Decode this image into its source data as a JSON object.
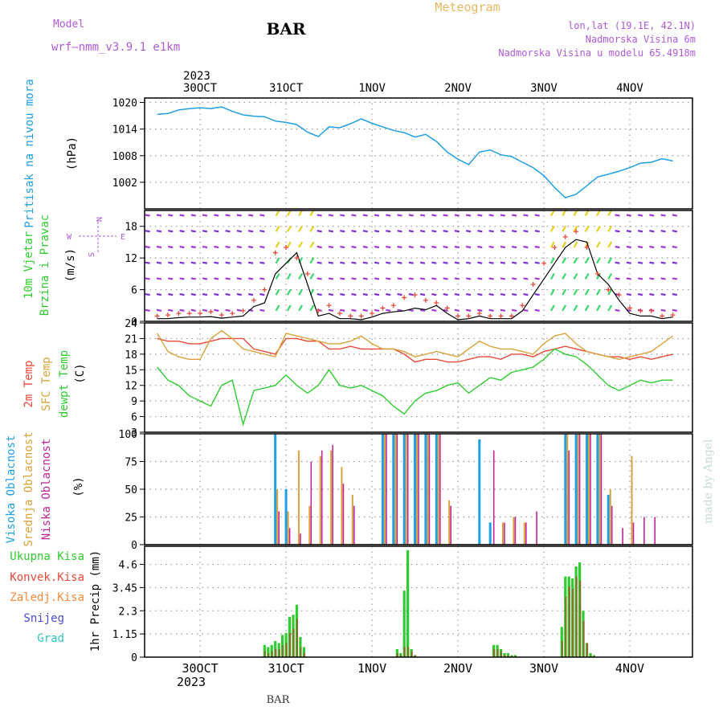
{
  "header": {
    "meteogram_title": "Meteogram",
    "model_label": "Model",
    "model_name": "wrf—nmm_v3.9.1 e1km",
    "station": "BAR",
    "location": "lon,lat (19.1E, 42.1N)",
    "altitude": "Nadmorska Visina 6m",
    "model_altitude": "Nadmorska Visina u modelu 65.4918m",
    "watermark": "made by Angel",
    "footer_station": "BAR"
  },
  "colors": {
    "pressure": "#1e9fe6",
    "temp2m": "#e84a3a",
    "sfc_temp": "#d9a23a",
    "dewpoint": "#2ecc2e",
    "cloud_high": "#1e9fe6",
    "cloud_mid": "#d9a23a",
    "cloud_low": "#c0259a",
    "precip_total": "#2ecc2e",
    "precip_conv": "#e84a3a",
    "gust_marker": "#e84a3a",
    "title_purple": "#b05ad8",
    "meteogram_orange": "#e6b860"
  },
  "time_axis": {
    "year": "2023",
    "days": [
      "30OCT",
      "31OCT",
      "1NOV",
      "2NOV",
      "3NOV",
      "4NOV"
    ],
    "start_hour": 0,
    "end_hour": 144
  },
  "chart_data": [
    {
      "type": "line",
      "panel": "pressure",
      "ylabel": [
        "Pritisak na nivou mora",
        "(hPa)"
      ],
      "yticks": [
        1002,
        1008,
        1014,
        1020
      ],
      "ylim": [
        996,
        1021
      ],
      "grid": true,
      "x": [
        -12,
        -9,
        -6,
        -3,
        0,
        3,
        6,
        9,
        12,
        15,
        18,
        21,
        24,
        27,
        30,
        33,
        36,
        39,
        42,
        45,
        48,
        51,
        54,
        57,
        60,
        63,
        66,
        69,
        72,
        75,
        78,
        81,
        84,
        87,
        90,
        93,
        96,
        99,
        102,
        105,
        108,
        111,
        114,
        117,
        120,
        123,
        126,
        129,
        132
      ],
      "series": [
        {
          "values": [
            1017.3,
            1017.5,
            1018.3,
            1018.6,
            1018.8,
            1018.6,
            1019.0,
            1018.0,
            1017.2,
            1016.9,
            1016.8,
            1015.8,
            1015.5,
            1015.0,
            1013.3,
            1012.3,
            1014.5,
            1014.3,
            1015.2,
            1016.3,
            1015.3,
            1014.5,
            1013.7,
            1013.2,
            1012.2,
            1012.8,
            1011.2,
            1008.8,
            1007.2,
            1006.0,
            1008.8,
            1009.3,
            1008.2,
            1007.8,
            1006.5,
            1005.3,
            1003.5,
            1000.8,
            998.5,
            999.3,
            1001.2,
            1003.2,
            1003.8,
            1004.5,
            1005.3,
            1006.3,
            1006.5,
            1007.3,
            1006.8
          ]
        }
      ]
    },
    {
      "type": "line",
      "panel": "wind",
      "ylabel": [
        "10m Vjetar",
        "Brzina i Pravac",
        "(m/s)"
      ],
      "compass": [
        "N",
        "W",
        "E",
        "S"
      ],
      "yticks": [
        0,
        6,
        12,
        18
      ],
      "ylim": [
        0,
        21
      ],
      "grid": true,
      "x": [
        -12,
        -9,
        -6,
        -3,
        0,
        3,
        6,
        9,
        12,
        15,
        18,
        21,
        24,
        27,
        30,
        33,
        36,
        39,
        42,
        45,
        48,
        51,
        54,
        57,
        60,
        63,
        66,
        69,
        72,
        75,
        78,
        81,
        84,
        87,
        90,
        93,
        96,
        99,
        102,
        105,
        108,
        111,
        114,
        117,
        120,
        123,
        126,
        129,
        132
      ],
      "series": [
        {
          "name": "speed",
          "values": [
            0.5,
            0.5,
            0.7,
            0.8,
            0.8,
            0.9,
            0.6,
            0.8,
            1.0,
            2.8,
            3.5,
            9.0,
            11.0,
            13.0,
            7.0,
            1.0,
            1.5,
            0.5,
            0.5,
            0.3,
            0.8,
            1.5,
            1.8,
            2.0,
            2.5,
            2.2,
            3.0,
            1.5,
            0.3,
            0.5,
            1.0,
            0.5,
            0.5,
            0.5,
            2.0,
            5.0,
            8.0,
            11.0,
            14.0,
            15.5,
            15.0,
            9.0,
            7.0,
            4.0,
            1.5,
            1.0,
            1.0,
            0.5,
            0.8
          ]
        },
        {
          "name": "gust",
          "values": [
            1.0,
            1.2,
            1.5,
            1.5,
            1.5,
            1.8,
            1.2,
            1.5,
            2.0,
            4.0,
            6.0,
            13.0,
            14.0,
            12.0,
            9.0,
            2.0,
            3.0,
            1.5,
            1.0,
            1.0,
            1.5,
            2.5,
            3.0,
            4.5,
            5.0,
            4.0,
            3.5,
            2.5,
            1.0,
            1.0,
            1.5,
            1.0,
            1.0,
            1.0,
            3.0,
            7.0,
            11.0,
            14.0,
            16.0,
            17.0,
            14.0,
            9.0,
            6.0,
            5.0,
            2.5,
            2.0,
            2.0,
            1.0,
            1.2
          ]
        }
      ]
    },
    {
      "type": "line",
      "panel": "temperature",
      "ylabel": [
        "2m Temp",
        "SFC Temp",
        "dewpt Temp",
        "(C)"
      ],
      "yticks": [
        3,
        6,
        9,
        12,
        15,
        18,
        21,
        24
      ],
      "ylim": [
        3,
        24
      ],
      "grid": true,
      "x": [
        -12,
        -9,
        -6,
        -3,
        0,
        3,
        6,
        9,
        12,
        15,
        18,
        21,
        24,
        27,
        30,
        33,
        36,
        39,
        42,
        45,
        48,
        51,
        54,
        57,
        60,
        63,
        66,
        69,
        72,
        75,
        78,
        81,
        84,
        87,
        90,
        93,
        96,
        99,
        102,
        105,
        108,
        111,
        114,
        117,
        120,
        123,
        126,
        129,
        132
      ],
      "series": [
        {
          "name": "2m Temp",
          "values": [
            21.0,
            20.5,
            20.5,
            20.0,
            20.0,
            20.5,
            21.0,
            21.0,
            21.0,
            19.0,
            18.5,
            18.0,
            21.0,
            21.0,
            20.5,
            20.5,
            19.0,
            19.0,
            19.5,
            19.0,
            19.0,
            19.0,
            19.0,
            18.0,
            16.5,
            17.0,
            17.0,
            16.5,
            16.5,
            17.0,
            17.5,
            17.5,
            17.0,
            18.0,
            18.0,
            17.5,
            18.5,
            19.0,
            19.5,
            19.0,
            18.5,
            18.0,
            17.5,
            17.5,
            17.0,
            17.5,
            17.0,
            17.5,
            18.0
          ]
        },
        {
          "name": "SFC Temp",
          "values": [
            22.0,
            18.5,
            17.5,
            17.0,
            17.0,
            21.0,
            22.5,
            21.0,
            19.0,
            18.5,
            18.0,
            17.5,
            22.0,
            21.5,
            21.0,
            20.5,
            20.0,
            20.0,
            20.5,
            21.5,
            20.0,
            19.0,
            19.0,
            18.5,
            17.5,
            18.0,
            18.5,
            18.0,
            17.5,
            19.0,
            20.5,
            19.5,
            19.0,
            19.0,
            18.5,
            18.0,
            20.0,
            21.5,
            22.0,
            20.0,
            18.5,
            18.0,
            17.5,
            17.0,
            17.5,
            18.0,
            18.5,
            20.0,
            21.5
          ]
        },
        {
          "name": "dewpt Temp",
          "values": [
            15.5,
            13.0,
            12.0,
            10.0,
            9.0,
            8.0,
            12.0,
            13.0,
            4.5,
            11.0,
            11.5,
            12.0,
            14.0,
            12.0,
            10.5,
            12.0,
            15.0,
            12.0,
            11.5,
            12.0,
            11.0,
            10.0,
            8.0,
            6.5,
            9.0,
            10.5,
            11.0,
            12.0,
            12.5,
            10.5,
            12.0,
            13.5,
            13.0,
            14.5,
            15.0,
            15.5,
            17.0,
            19.0,
            18.0,
            17.5,
            16.0,
            14.0,
            12.0,
            11.0,
            12.0,
            13.0,
            12.5,
            13.0,
            13.0
          ]
        }
      ]
    },
    {
      "type": "bar",
      "panel": "cloud",
      "ylabel": [
        "Visoka Oblacnost",
        "Srednja Oblacnost",
        "Niska Oblacnost",
        "(%)"
      ],
      "yticks": [
        0,
        25,
        50,
        75,
        100
      ],
      "ylim": [
        0,
        100
      ],
      "grid": true,
      "x": [
        -12,
        -9,
        -6,
        -3,
        0,
        3,
        6,
        9,
        12,
        15,
        18,
        21,
        24,
        27,
        30,
        33,
        36,
        39,
        42,
        45,
        48,
        51,
        54,
        57,
        60,
        63,
        66,
        69,
        72,
        75,
        78,
        81,
        84,
        87,
        90,
        93,
        96,
        99,
        102,
        105,
        108,
        111,
        114,
        117,
        120,
        123,
        126,
        129,
        132
      ],
      "series": [
        {
          "name": "Visoka Oblacnost",
          "values": [
            0,
            0,
            0,
            0,
            0,
            0,
            0,
            0,
            0,
            0,
            0,
            100,
            50,
            0,
            0,
            0,
            0,
            0,
            0,
            0,
            0,
            100,
            100,
            100,
            100,
            100,
            100,
            0,
            0,
            0,
            95,
            20,
            0,
            0,
            0,
            0,
            0,
            0,
            100,
            100,
            100,
            100,
            45,
            0,
            0,
            0,
            0,
            0,
            0
          ]
        },
        {
          "name": "Srednja Oblacnost",
          "values": [
            0,
            0,
            0,
            0,
            0,
            0,
            0,
            0,
            0,
            0,
            0,
            50,
            30,
            85,
            35,
            80,
            85,
            70,
            45,
            0,
            0,
            100,
            100,
            100,
            100,
            100,
            100,
            40,
            0,
            0,
            0,
            0,
            20,
            25,
            20,
            0,
            0,
            0,
            100,
            100,
            100,
            100,
            50,
            0,
            80,
            0,
            0,
            0,
            0
          ]
        },
        {
          "name": "Niska Oblacnost",
          "values": [
            0,
            0,
            0,
            0,
            0,
            0,
            0,
            0,
            0,
            0,
            0,
            30,
            15,
            10,
            75,
            85,
            90,
            55,
            35,
            0,
            0,
            100,
            100,
            100,
            100,
            100,
            100,
            35,
            0,
            0,
            0,
            85,
            20,
            25,
            20,
            30,
            0,
            0,
            85,
            100,
            100,
            100,
            35,
            15,
            20,
            25,
            25,
            0,
            0
          ]
        }
      ]
    },
    {
      "type": "bar",
      "panel": "precipitation",
      "ylabel": [
        "1hr Precip (mm)"
      ],
      "legend": [
        "Ukupna Kisa",
        "Konvek.Kisa",
        "Zaledj.Kisa",
        "Snijeg",
        "Grad"
      ],
      "yticks": [
        0,
        1.15,
        2.3,
        3.45,
        4.6
      ],
      "ylim": [
        0,
        5.5
      ],
      "grid": true,
      "x": [
        18,
        19,
        20,
        21,
        22,
        23,
        24,
        25,
        26,
        27,
        28,
        29,
        55,
        56,
        57,
        58,
        59,
        60,
        82,
        83,
        84,
        85,
        86,
        87,
        88,
        101,
        102,
        103,
        104,
        105,
        106,
        107,
        108,
        109,
        110
      ],
      "series": [
        {
          "name": "Ukupna Kisa",
          "values": [
            0.6,
            0.5,
            0.6,
            0.8,
            0.7,
            1.1,
            1.2,
            2.0,
            2.1,
            2.6,
            1.0,
            0.5,
            0.4,
            0.2,
            3.3,
            5.3,
            0.4,
            0.1,
            0.6,
            0.6,
            0.4,
            0.2,
            0.2,
            0.1,
            0.1,
            1.5,
            4.0,
            4.0,
            3.9,
            4.5,
            4.7,
            2.3,
            0.7,
            0.2,
            0.1
          ]
        },
        {
          "name": "Konvek.Kisa",
          "values": [
            0.3,
            0.2,
            0.3,
            0.4,
            0.4,
            0.6,
            0.7,
            1.2,
            1.4,
            1.9,
            0.5,
            0.2,
            0.2,
            0.1,
            0.5,
            0.5,
            0.3,
            0.1,
            0.4,
            0.4,
            0.3,
            0.1,
            0.1,
            0.05,
            0.05,
            0.8,
            3.0,
            3.5,
            3.4,
            4.0,
            3.8,
            1.8,
            0.7,
            0.1,
            0.05
          ]
        }
      ]
    }
  ]
}
